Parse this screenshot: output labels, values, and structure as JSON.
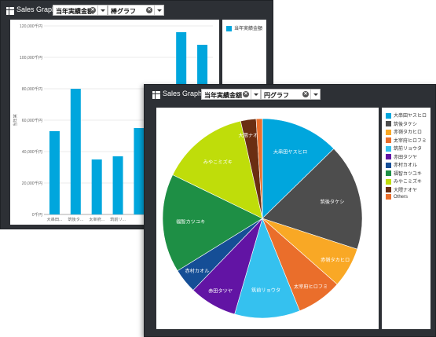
{
  "bar_window": {
    "title": "Sales Graph",
    "measure_select": "当年実績金額",
    "chart_type_select": "棒グラフ",
    "legend": [
      {
        "label": "当年実績金額",
        "color": "#00a6dd"
      }
    ]
  },
  "pie_window": {
    "title": "Sales Graph",
    "measure_select": "当年実績金額",
    "chart_type_select": "円グラフ",
    "legend": [
      {
        "label": "大串田ヤスヒロ",
        "color": "#00a6dd"
      },
      {
        "label": "筑後タケシ",
        "color": "#4d4d4d"
      },
      {
        "label": "赤嶺タカヒロ",
        "color": "#f9a825"
      },
      {
        "label": "太宰府ヒロフミ",
        "color": "#ea6e2b"
      },
      {
        "label": "筑前リョウタ",
        "color": "#35c1ef"
      },
      {
        "label": "赤田タツヤ",
        "color": "#6214a4"
      },
      {
        "label": "赤村カオル",
        "color": "#154e96"
      },
      {
        "label": "福智カツユキ",
        "color": "#1e8f45"
      },
      {
        "label": "みやこミズキ",
        "color": "#bfdd0a"
      },
      {
        "label": "大隈ナオヤ",
        "color": "#6a2e12"
      },
      {
        "label": "Others",
        "color": "#ea6e2b"
      }
    ]
  },
  "chart_data": [
    {
      "type": "bar",
      "title": "",
      "series": [
        {
          "name": "当年実績金額",
          "values": [
            53000,
            80000,
            35000,
            37000,
            55000,
            38000,
            116000,
            108000
          ]
        }
      ],
      "categories": [
        "大串田...",
        "筑後タ...",
        "太宰府...",
        "筑前リ...",
        "",
        "赤田タ...",
        "",
        ""
      ],
      "ylabel": "当年実",
      "ylim": [
        0,
        120000
      ],
      "yticks": [
        "0千円",
        "20,000千円",
        "40,000千円",
        "60,000千円",
        "80,000千円",
        "100,000千円",
        "120,000千円"
      ],
      "bar_color": "#00a6dd",
      "grid": true
    },
    {
      "type": "pie",
      "title": "",
      "slices": [
        {
          "label": "大串田ヤスヒロ",
          "value": 12.7,
          "color": "#00a6dd"
        },
        {
          "label": "筑後タケシ",
          "value": 17.3,
          "color": "#4d4d4d"
        },
        {
          "label": "赤嶺タカヒロ",
          "value": 6.5,
          "color": "#f9a825"
        },
        {
          "label": "太宰府ヒロフミ",
          "value": 7.4,
          "color": "#ea6e2b"
        },
        {
          "label": "筑前リョウタ",
          "value": 10.6,
          "color": "#35c1ef"
        },
        {
          "label": "赤田タツヤ",
          "value": 7.7,
          "color": "#6214a4"
        },
        {
          "label": "赤村カオル",
          "value": 4.0,
          "color": "#154e96"
        },
        {
          "label": "福智カツユキ",
          "value": 16.0,
          "color": "#1e8f45"
        },
        {
          "label": "みやこミズキ",
          "value": 14.3,
          "color": "#bfdd0a"
        },
        {
          "label": "大隈ナオヤ",
          "value": 2.5,
          "color": "#6a2e12"
        },
        {
          "label": "",
          "value": 1.0,
          "color": "#ea6e2b"
        }
      ]
    }
  ]
}
